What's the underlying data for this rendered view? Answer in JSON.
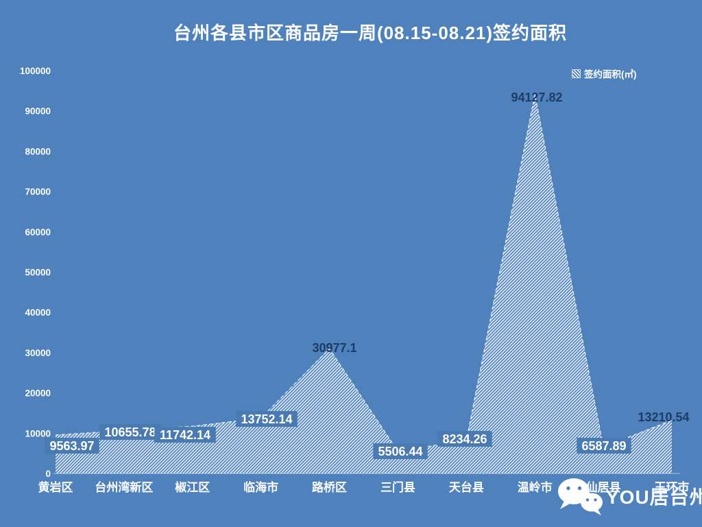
{
  "title": "台州各县市区商品房一周(08.15-08.21)签约面积",
  "legend": {
    "label": "签约面积(㎡)",
    "marker": "hatched-square",
    "position": "top-right"
  },
  "watermark": {
    "text": "YOU居台州",
    "icon": "wechat-icon"
  },
  "colors": {
    "background": "#4f81bd",
    "text": "#ffffff",
    "hatch": "#ffffff",
    "data_label_dark": "#1e3c64",
    "data_label_light": "#ffffff",
    "data_label_box": "#4a7ab2",
    "axis_line": "rgba(255,255,255,0.55)",
    "area_outline": "rgba(255,255,255,0.8)"
  },
  "chart_data": {
    "type": "area",
    "title": "台州各县市区商品房一周(08.15-08.21)签约面积",
    "series_name": "签约面积(㎡)",
    "categories": [
      "黄岩区",
      "台州湾新区",
      "椒江区",
      "临海市",
      "路桥区",
      "三门县",
      "天台县",
      "温岭市",
      "仙居县",
      "玉环市"
    ],
    "values": [
      9563.97,
      10655.78,
      11742.14,
      13752.14,
      30977.1,
      5506.44,
      8234.26,
      94127.82,
      6587.89,
      13210.54
    ],
    "value_labels": [
      "9563.97",
      "10655.78",
      "11742.14",
      "13752.14",
      "30977.1",
      "5506.44",
      "8234.26",
      "94127.82",
      "6587.89",
      "13210.54"
    ],
    "xlabel": "",
    "ylabel": "",
    "ylim": [
      0,
      100000
    ],
    "ytick_step": 10000,
    "fill_style": "diagonal-hatch",
    "legend_position": "top-right",
    "grid": false
  }
}
